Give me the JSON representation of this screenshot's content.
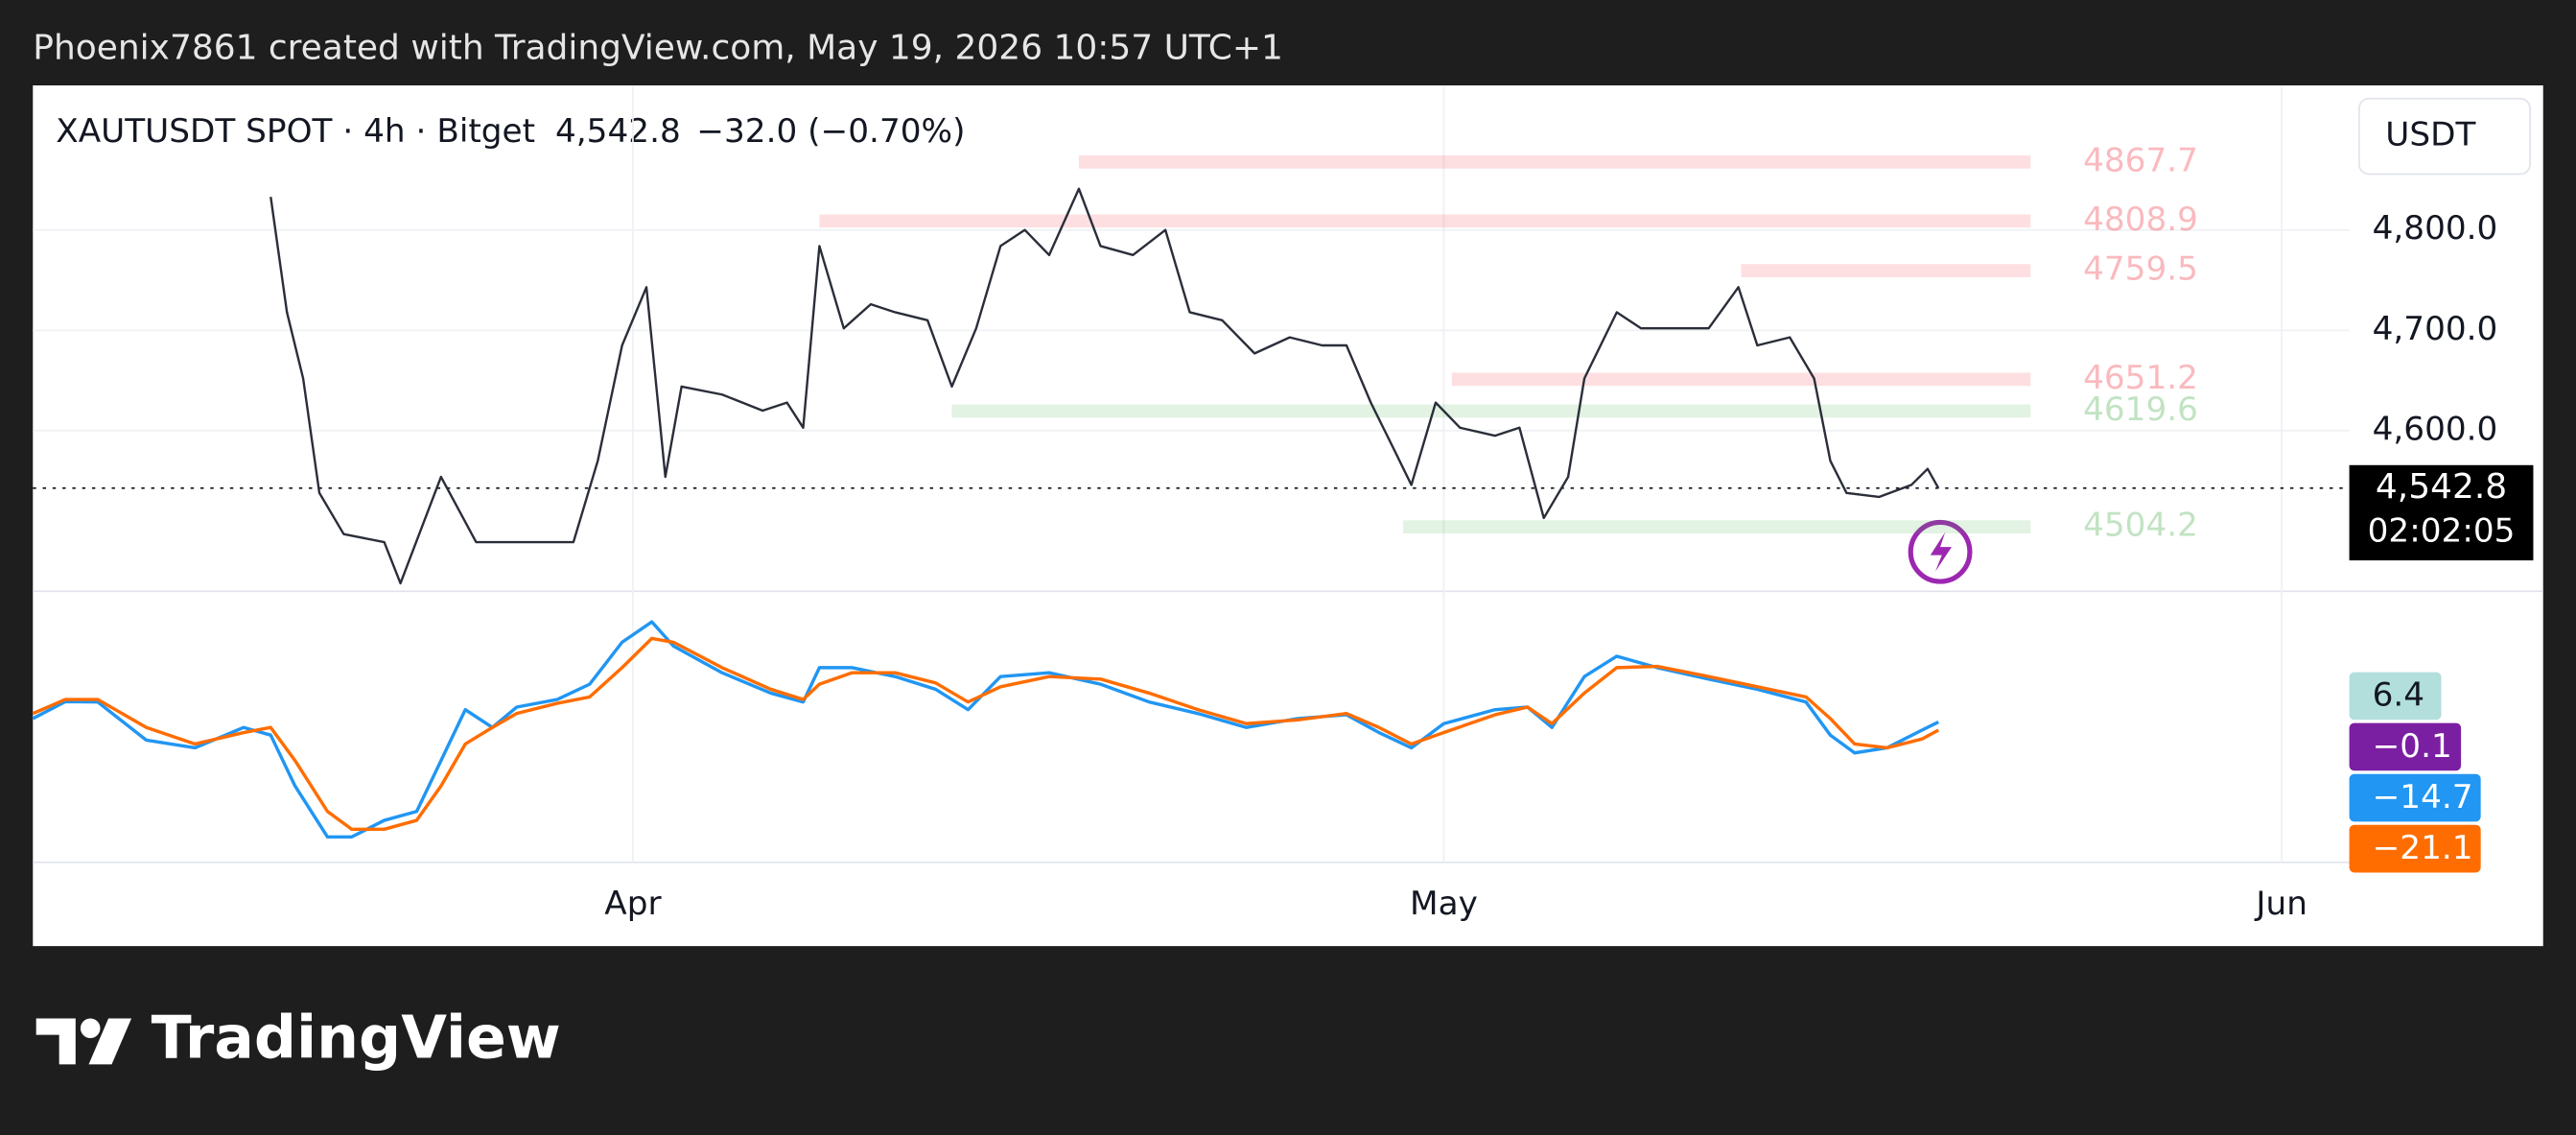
{
  "watermark_text": "Phoenix7861 created with TradingView.com, May 19, 2026 10:57 UTC+1",
  "logo": "TradingView",
  "chart_data": [
    {
      "type": "line",
      "title": "XAUTUSDT SPOT · 4h · Bitget",
      "last_price": {
        "value": 4542.8,
        "label": "4,542.8"
      },
      "change_text": "−32.0 (−0.70%)",
      "countdown": "02:02:05",
      "currency": "USDT",
      "x": [
        -13.4,
        -12.8,
        -12.2,
        -11.6,
        -10.7,
        -9.2,
        -8.6,
        -7.1,
        -5.8,
        -4.6,
        -3.4,
        -2.2,
        -1.3,
        -0.4,
        0.5,
        1.2,
        1.8,
        3.3,
        4.8,
        5.7,
        6.3,
        6.9,
        7.8,
        8.8,
        9.7,
        10.9,
        11.8,
        12.7,
        13.6,
        14.5,
        15.4,
        16.5,
        17.3,
        18.5,
        19.7,
        20.6,
        21.8,
        23.0,
        24.3,
        25.5,
        26.4,
        27.3,
        28.2,
        28.8,
        29.7,
        30.6,
        31.9,
        32.8,
        33.7,
        34.6,
        35.2,
        36.4,
        37.3,
        38.5,
        39.8,
        40.9,
        41.6,
        42.8,
        43.7,
        44.3,
        44.9,
        46.1,
        47.3,
        47.9,
        48.3
      ],
      "series": [
        {
          "color": "#2a2e39",
          "values": [
            4833,
            4718,
            4652,
            4538,
            4497,
            4489,
            4448,
            4554,
            4489,
            4489,
            4489,
            4489,
            4570,
            4685,
            4743,
            4554,
            4644,
            4636,
            4620,
            4628,
            4603,
            4784,
            4702,
            4726,
            4718,
            4710,
            4644,
            4702,
            4784,
            4800,
            4775,
            4841,
            4784,
            4775,
            4800,
            4718,
            4710,
            4677,
            4693,
            4685,
            4685,
            4628,
            4579,
            4546,
            4628,
            4603,
            4595,
            4603,
            4513,
            4554,
            4652,
            4718,
            4702,
            4702,
            4702,
            4743,
            4685,
            4693,
            4652,
            4570,
            4538,
            4534,
            4546,
            4562,
            4542.8
          ]
        }
      ],
      "levels": [
        {
          "value": 4867.7,
          "from": 16.5,
          "color": "#f23645"
        },
        {
          "value": 4808.9,
          "from": 6.9,
          "color": "#f23645"
        },
        {
          "value": 4759.5,
          "from": 41.0,
          "color": "#f23645"
        },
        {
          "value": 4651.2,
          "from": 30.3,
          "color": "#f23645"
        },
        {
          "value": 4619.6,
          "from": 11.8,
          "color": "#4caf50"
        },
        {
          "value": 4504.2,
          "from": 28.5,
          "color": "#4caf50"
        }
      ],
      "xlim": [
        -22.2,
        63.5
      ],
      "xticks": [
        {
          "value": 0,
          "label": "Apr"
        },
        {
          "value": 30,
          "label": "May"
        },
        {
          "value": 61,
          "label": "Jun"
        }
      ],
      "ylim": [
        4440,
        4944
      ],
      "yticks": [
        {
          "value": 4600,
          "label": "4,600.0"
        },
        {
          "value": 4700,
          "label": "4,700.0"
        },
        {
          "value": 4800,
          "label": "4,800.0"
        }
      ],
      "grid": true
    },
    {
      "type": "line",
      "x": [
        -22.2,
        -21.0,
        -19.8,
        -18.0,
        -16.2,
        -14.4,
        -13.4,
        -12.5,
        -11.3,
        -10.4,
        -9.2,
        -8.0,
        -7.1,
        -6.2,
        -5.2,
        -4.3,
        -2.8,
        -1.6,
        -0.4,
        0.7,
        1.5,
        3.3,
        5.1,
        6.3,
        6.9,
        8.1,
        9.7,
        11.2,
        12.4,
        13.6,
        15.4,
        17.3,
        19.1,
        20.9,
        22.7,
        24.6,
        26.4,
        27.6,
        28.8,
        30.0,
        31.9,
        33.1,
        34.0,
        35.2,
        36.4,
        37.9,
        39.8,
        41.6,
        43.4,
        44.3,
        45.2,
        46.4,
        47.7,
        48.3
      ],
      "series": [
        {
          "color": "#2196f3",
          "values": [
            -12,
            1.3,
            1,
            -29,
            -35,
            -19,
            -25,
            -65,
            -105,
            -105,
            -92,
            -85,
            -45,
            -5,
            -19,
            -3,
            3,
            15,
            48,
            64,
            45,
            24,
            8,
            1,
            28,
            28,
            21,
            11,
            -5,
            21,
            24,
            15,
            1,
            -8,
            -19,
            -12,
            -9,
            -23,
            -35,
            -16,
            -5,
            -3,
            -19,
            21,
            37,
            28,
            19,
            11,
            1,
            -25,
            -39,
            -35,
            -21,
            -14.7
          ]
        },
        {
          "color": "#ff6d00",
          "values": [
            -8,
            3,
            3,
            -19,
            -32,
            -23,
            -19,
            -45,
            -85,
            -99,
            -99,
            -92,
            -65,
            -32,
            -19,
            -8,
            0,
            5,
            28,
            51,
            48,
            28,
            11,
            3,
            15,
            24,
            24,
            16,
            1,
            13,
            21,
            19,
            8,
            -5,
            -16,
            -13,
            -8,
            -19,
            -32,
            -23,
            -9,
            -3,
            -16,
            8,
            28,
            29,
            21,
            13,
            5,
            -12,
            -32,
            -35,
            -28,
            -21.1
          ]
        }
      ],
      "badges": [
        {
          "value": 6.4,
          "color": "#b2dfdb"
        },
        {
          "value": -0.1,
          "label": "−0.1",
          "color": "#7b1fa2"
        },
        {
          "value": -14.7,
          "label": "−14.7",
          "color": "#2196f3"
        },
        {
          "value": -21.1,
          "label": "−21.1",
          "color": "#ff6d00"
        }
      ],
      "ylim": [
        -125,
        88
      ]
    }
  ]
}
